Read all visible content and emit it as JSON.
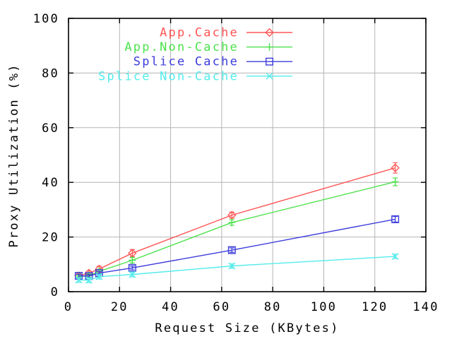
{
  "figure": {
    "background": "#ffffff",
    "axis_color": "#000000",
    "grid_color": "#b4b4b4",
    "text_color": "#000000"
  },
  "chart_data": {
    "type": "line",
    "title": "",
    "xlabel": "Request Size (KBytes)",
    "ylabel": "Proxy Utilization (%)",
    "xlim": [
      0,
      140
    ],
    "ylim": [
      0,
      100
    ],
    "xticks": [
      0,
      20,
      40,
      60,
      80,
      100,
      120,
      140
    ],
    "yticks": [
      0,
      20,
      40,
      60,
      80,
      100
    ],
    "grid": true,
    "legend_position": "top-inside",
    "x": [
      4,
      8,
      12,
      25,
      64,
      128
    ],
    "series": [
      {
        "name": "App.Cache",
        "color": "#ff5555",
        "marker": "diamond",
        "values": [
          5.8,
          6.8,
          8.3,
          14.1,
          28.0,
          45.3
        ],
        "yerr": [
          0.8,
          0.8,
          1.0,
          1.3,
          1.1,
          1.9
        ]
      },
      {
        "name": "App.Non-Cache",
        "color": "#4ce24c",
        "marker": "plus",
        "values": [
          5.4,
          5.9,
          7.4,
          11.5,
          25.3,
          40.2
        ],
        "yerr": [
          0.6,
          0.6,
          0.8,
          1.0,
          1.0,
          1.4
        ]
      },
      {
        "name": "Splice Cache",
        "color": "#3c3cdc",
        "marker": "square",
        "values": [
          5.8,
          5.7,
          6.8,
          8.7,
          15.2,
          26.5
        ],
        "yerr": [
          0.6,
          0.6,
          0.6,
          0.7,
          0.8,
          1.0
        ]
      },
      {
        "name": "Splice Non-Cache",
        "color": "#55ebeb",
        "marker": "x",
        "values": [
          4.3,
          4.2,
          5.5,
          6.3,
          9.4,
          12.9
        ],
        "yerr": [
          0.9,
          0.9,
          0.9,
          0.9,
          0.8,
          0.8
        ]
      }
    ]
  }
}
